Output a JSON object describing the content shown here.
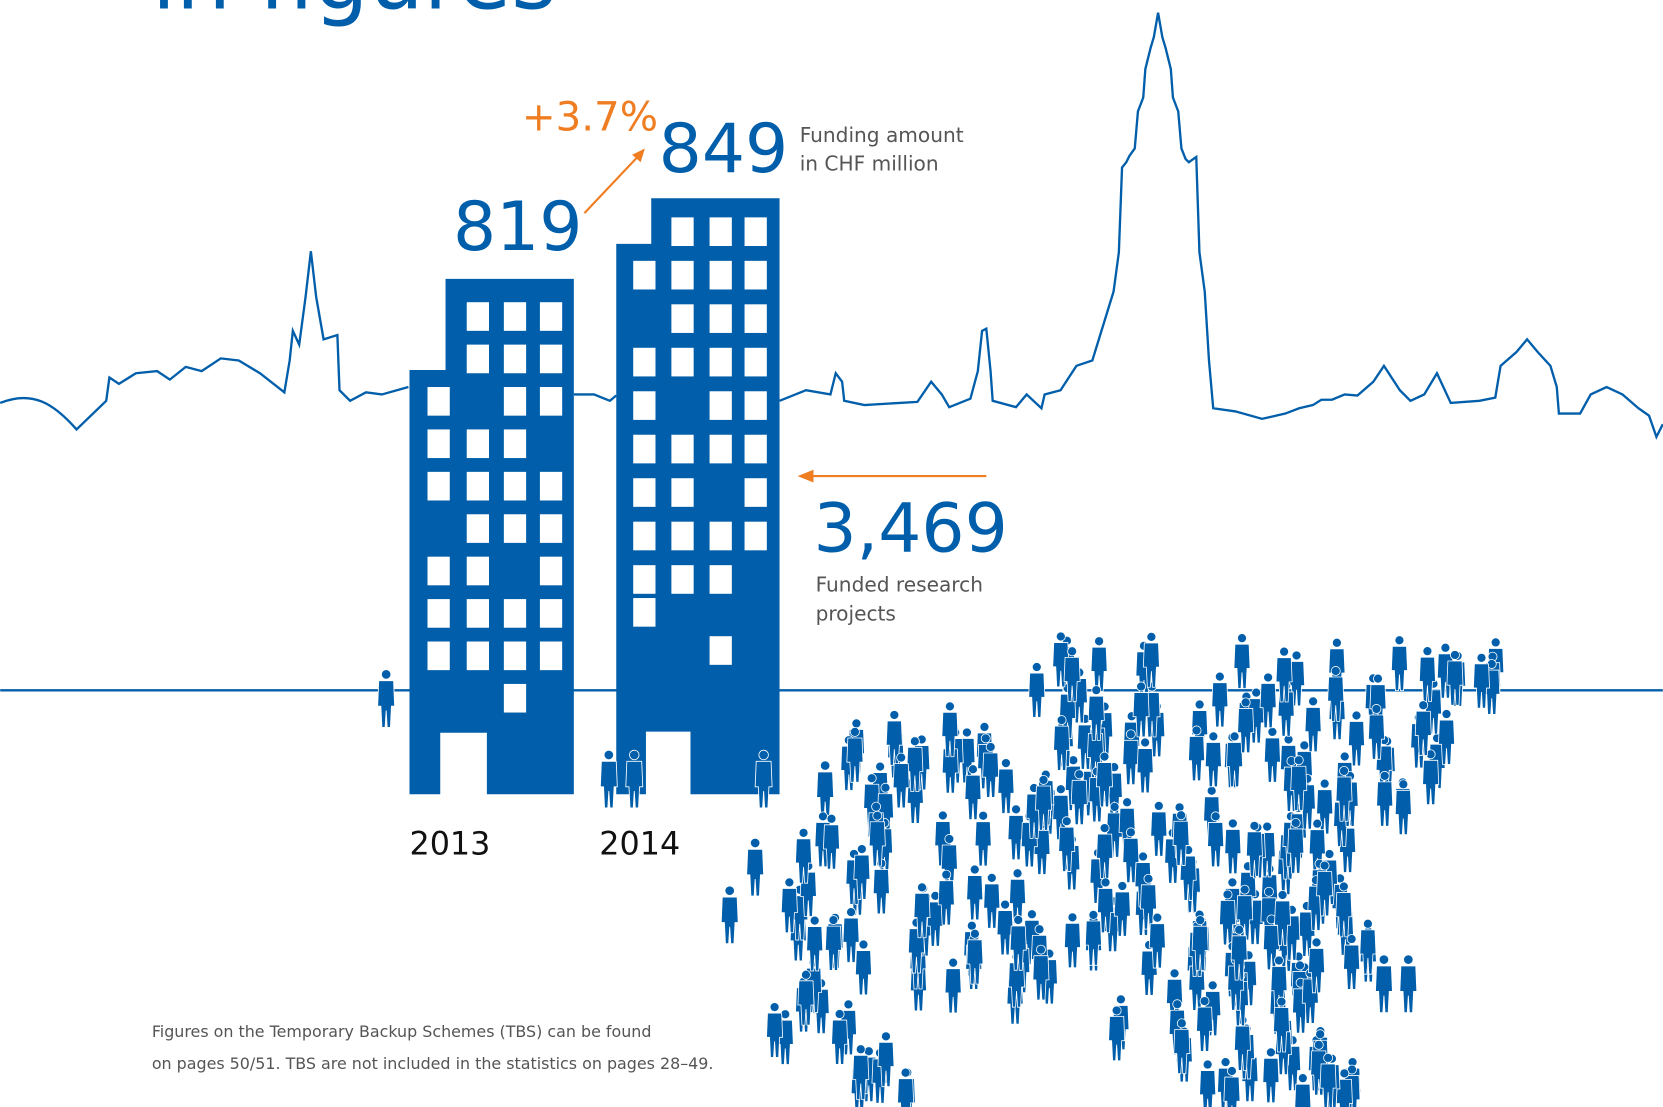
{
  "title": "in figures",
  "growth": "+3.7%",
  "funding": {
    "value_2014": "849",
    "value_2013": "819",
    "caption_line1": "Funding amount",
    "caption_line2": "in CHF million"
  },
  "projects": {
    "value": "3,469",
    "caption_line1": "Funded research",
    "caption_line2": "projects"
  },
  "years": [
    "2013",
    "2014"
  ],
  "footnote": [
    "Figures on the Temporary Backup Schemes (TBS) can be found",
    "on pages 50/51. TBS are not included in the statistics on pages 28–49."
  ]
}
